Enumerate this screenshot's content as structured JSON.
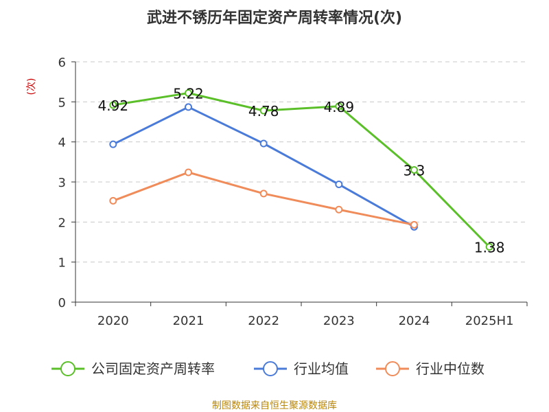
{
  "chart_data": {
    "type": "line",
    "title": "武进不锈历年固定资产周转率情况(次)",
    "ylabel": "(次)",
    "xlabel": "",
    "ylim": [
      0,
      6
    ],
    "yticks": [
      0,
      1,
      2,
      3,
      4,
      5,
      6
    ],
    "grid": true,
    "legend_position": "bottom",
    "categories": [
      "2020",
      "2021",
      "2022",
      "2023",
      "2024",
      "2025H1"
    ],
    "series": [
      {
        "name": "公司固定资产周转率",
        "color": "#5bbf2a",
        "values": [
          4.92,
          5.22,
          4.78,
          4.89,
          3.3,
          1.38
        ],
        "labels": [
          "4.92",
          "5.22",
          "4.78",
          "4.89",
          "3.3",
          "1.38"
        ]
      },
      {
        "name": "行业均值",
        "color": "#4b7bd8",
        "values": [
          3.94,
          4.87,
          3.96,
          2.94,
          1.88,
          null
        ]
      },
      {
        "name": "行业中位数",
        "color": "#f08b5a",
        "values": [
          2.53,
          3.24,
          2.71,
          2.31,
          1.93,
          null
        ]
      }
    ]
  },
  "source": "制图数据来自恒生聚源数据库"
}
